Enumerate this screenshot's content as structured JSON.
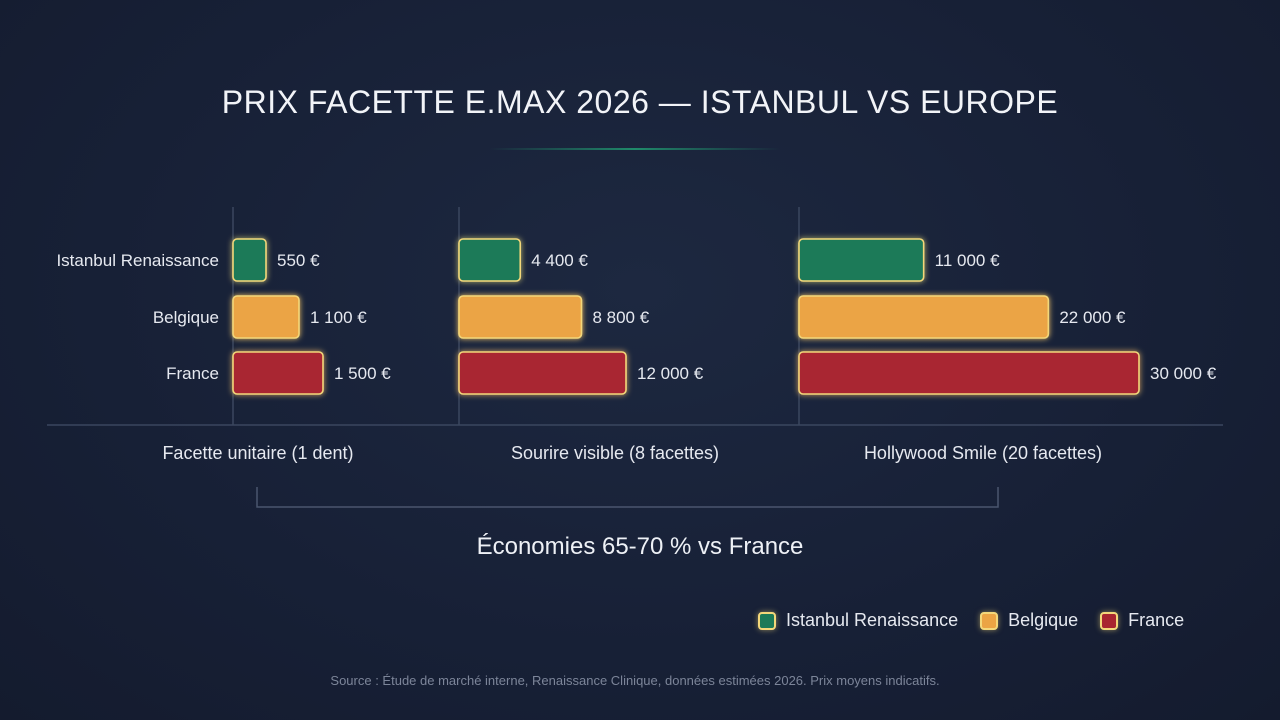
{
  "chart_data": {
    "type": "bar",
    "orientation": "horizontal",
    "title": "PRIX FACETTE E.MAX 2026 — ISTANBUL VS EUROPE",
    "rows": [
      "Istanbul Renaissance",
      "Belgique",
      "France"
    ],
    "colors": {
      "Istanbul Renaissance": "#1c7a58",
      "Belgique": "#eba444",
      "France": "#a92530"
    },
    "panels": [
      {
        "name": "Facette unitaire (1 dent)",
        "values": [
          550,
          1100,
          1500
        ],
        "labels": [
          "550 €",
          "1 100 €",
          "1 500 €"
        ]
      },
      {
        "name": "Sourire visible (8 facettes)",
        "values": [
          4400,
          8800,
          12000
        ],
        "labels": [
          "4 400 €",
          "8 800 €",
          "12 000 €"
        ]
      },
      {
        "name": "Hollywood Smile (20 facettes)",
        "values": [
          11000,
          22000,
          30000
        ],
        "labels": [
          "11 000 €",
          "22 000 €",
          "30 000 €"
        ]
      }
    ],
    "legend": [
      "Istanbul Renaissance",
      "Belgique",
      "France"
    ],
    "legend_position": "bottom-right",
    "annotation": "Économies 65-70 % vs France",
    "grid": false
  },
  "source": "Source : Étude de marché interne, Renaissance Clinique, données estimées 2026. Prix moyens indicatifs."
}
